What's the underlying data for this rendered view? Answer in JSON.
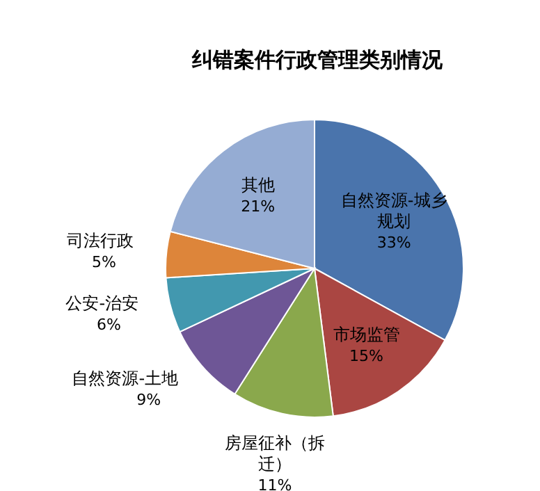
{
  "chart_data": {
    "type": "pie",
    "title": "纠错案件行政管理类别情况",
    "categories": [
      "自然资源-城乡规划",
      "市场监管",
      "房屋征补（拆迁）",
      "自然资源-土地",
      "公安-治安",
      "司法行政",
      "其他"
    ],
    "values": [
      33,
      15,
      11,
      9,
      6,
      5,
      21
    ],
    "value_labels": [
      "33%",
      "15%",
      "11%",
      "9%",
      "6%",
      "5%",
      "21%"
    ],
    "colors": [
      "#4a74ac",
      "#aa4642",
      "#8aa84c",
      "#6e5696",
      "#4298af",
      "#dd853a",
      "#95acd3"
    ]
  }
}
